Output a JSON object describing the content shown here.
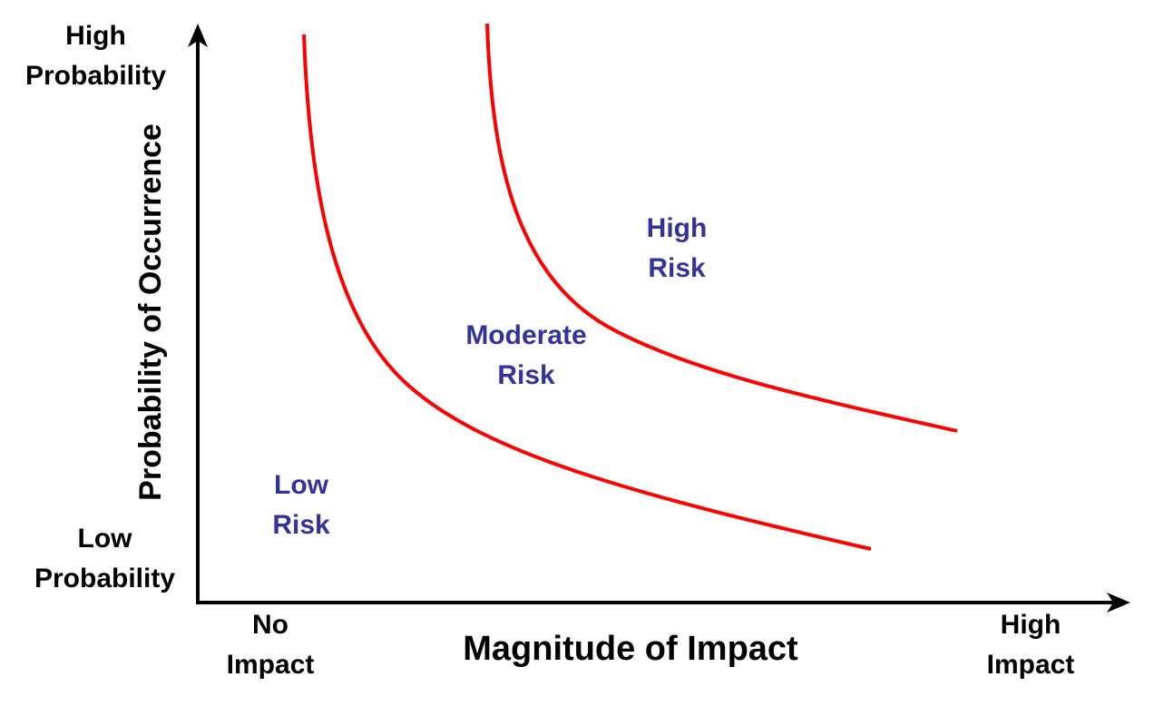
{
  "diagram": {
    "y_axis": {
      "title": "Probability of Occurrence",
      "top_label": [
        "High",
        "Probability"
      ],
      "bottom_label": [
        "Low",
        "Probability"
      ]
    },
    "x_axis": {
      "title": "Magnitude of Impact",
      "left_label": [
        "No",
        "Impact"
      ],
      "right_label": [
        "High",
        "Impact"
      ]
    },
    "zones": {
      "low": [
        "Low",
        "Risk"
      ],
      "moderate": [
        "Moderate",
        "Risk"
      ],
      "high": [
        "High",
        "Risk"
      ]
    },
    "colors": {
      "curve": "#ff0000",
      "axis": "#000000",
      "zone_text": "#333399"
    }
  }
}
